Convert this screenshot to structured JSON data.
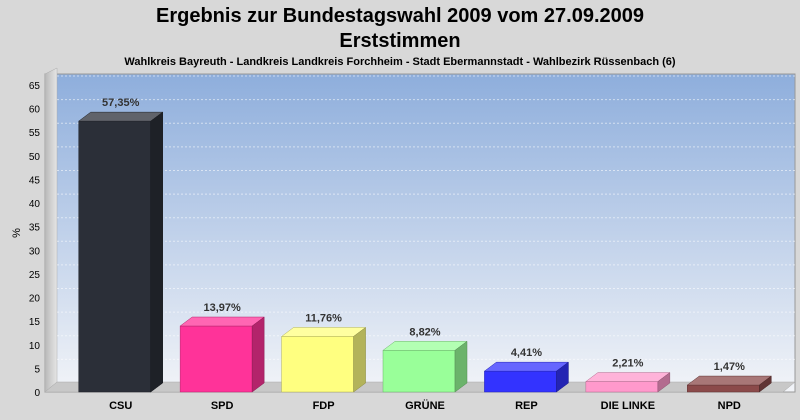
{
  "chart_data": {
    "type": "bar",
    "title": "Ergebnis zur Bundestagswahl 2009 vom 27.09.2009",
    "title2": "Erststimmen",
    "subtitle": "Wahlkreis Bayreuth - Landkreis Landkreis Forchheim - Stadt Ebermannstadt - Wahlbezirk Rüssenbach (6)",
    "ylabel": "%",
    "xlabel": "",
    "ylim": [
      0,
      65
    ],
    "yticks": [
      "0",
      "5",
      "10",
      "15",
      "20",
      "25",
      "30",
      "35",
      "40",
      "45",
      "50",
      "55",
      "60",
      "65"
    ],
    "grid": true,
    "categories": [
      "CSU",
      "SPD",
      "FDP",
      "GRÜNE",
      "REP",
      "DIE LINKE",
      "NPD"
    ],
    "values": [
      57.35,
      13.97,
      11.76,
      8.82,
      4.41,
      2.21,
      1.47
    ],
    "value_labels": [
      "57,35%",
      "13,97%",
      "11,76%",
      "8,82%",
      "4,41%",
      "2,21%",
      "1,47%"
    ],
    "colors": [
      "#2b2f38",
      "#ff3399",
      "#ffff80",
      "#99ff99",
      "#3333ff",
      "#ff99cc",
      "#8b4a4a"
    ]
  }
}
